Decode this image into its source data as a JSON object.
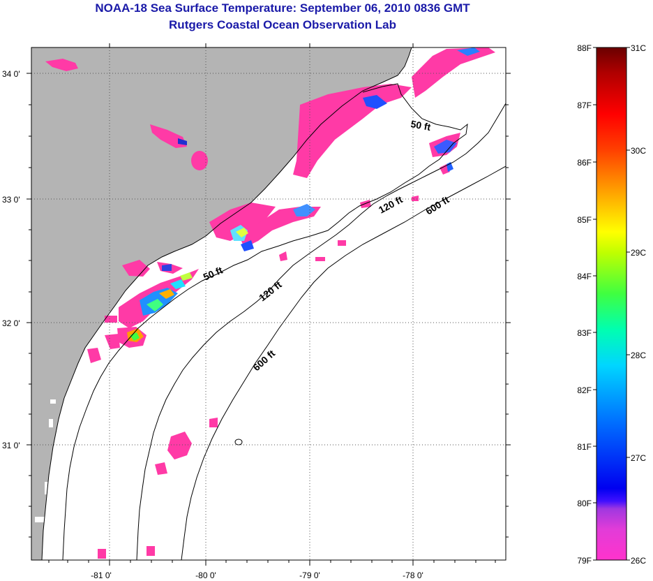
{
  "title": "NOAA-18 Sea Surface Temperature:  September 06, 2010 0836 GMT",
  "subtitle": "Rutgers Coastal Ocean Observation Lab",
  "lat_labels": [
    "34 0'",
    "33 0'",
    "32 0'",
    "31 0'"
  ],
  "lon_labels": [
    "-81 0'",
    "-80 0'",
    "-79 0'",
    "-78 0'"
  ],
  "contour_labels": [
    "50 ft",
    "120 ft",
    "600 ft",
    "50 ft",
    "120 ft",
    "600 ft"
  ],
  "colorbar": {
    "f_labels": [
      "88F",
      "87F",
      "86F",
      "85F",
      "84F",
      "83F",
      "82F",
      "81F",
      "80F",
      "79F"
    ],
    "c_labels": [
      "31C",
      "30C",
      "29C",
      "28C",
      "27C",
      "26C"
    ]
  },
  "colors": {
    "land": "#b4b4b4",
    "sst_dominant": "#ff3aa6",
    "title": "#1a1aa8"
  }
}
